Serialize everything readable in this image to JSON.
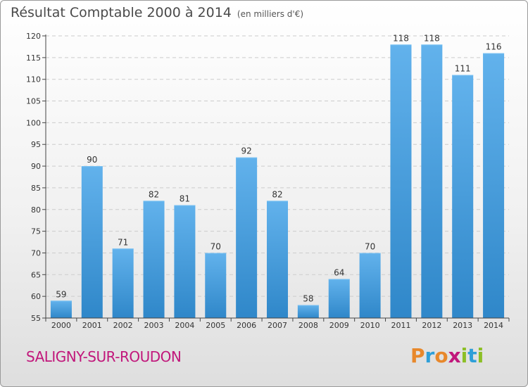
{
  "header": {
    "title": "Résultat Comptable 2000 à 2014",
    "subtitle": "(en milliers d'€)"
  },
  "footer": {
    "commune": "SALIGNY-SUR-ROUDON",
    "logo_text": "Proxiti",
    "logo_colors": [
      "#e8882b",
      "#2e9fd8",
      "#e8882b",
      "#c1177b",
      "#8cbf26",
      "#2e9fd8",
      "#8cbf26"
    ]
  },
  "colors": {
    "bar_light": "#62b2ec",
    "bar_dark": "#2f87c9",
    "grid": "#cccccc",
    "axis": "#444444"
  },
  "chart_data": {
    "type": "bar",
    "title": "Résultat Comptable 2000 à 2014",
    "subtitle": "(en milliers d'€)",
    "xlabel": "",
    "ylabel": "",
    "categories": [
      "2000",
      "2001",
      "2002",
      "2003",
      "2004",
      "2005",
      "2006",
      "2007",
      "2008",
      "2009",
      "2010",
      "2011",
      "2012",
      "2013",
      "2014"
    ],
    "values": [
      59,
      90,
      71,
      82,
      81,
      70,
      92,
      82,
      58,
      64,
      70,
      118,
      118,
      111,
      116
    ],
    "ylim": [
      55,
      120
    ],
    "yticks": [
      55,
      60,
      65,
      70,
      75,
      80,
      85,
      90,
      95,
      100,
      105,
      110,
      115,
      120
    ],
    "grid": true,
    "legend": "none"
  }
}
